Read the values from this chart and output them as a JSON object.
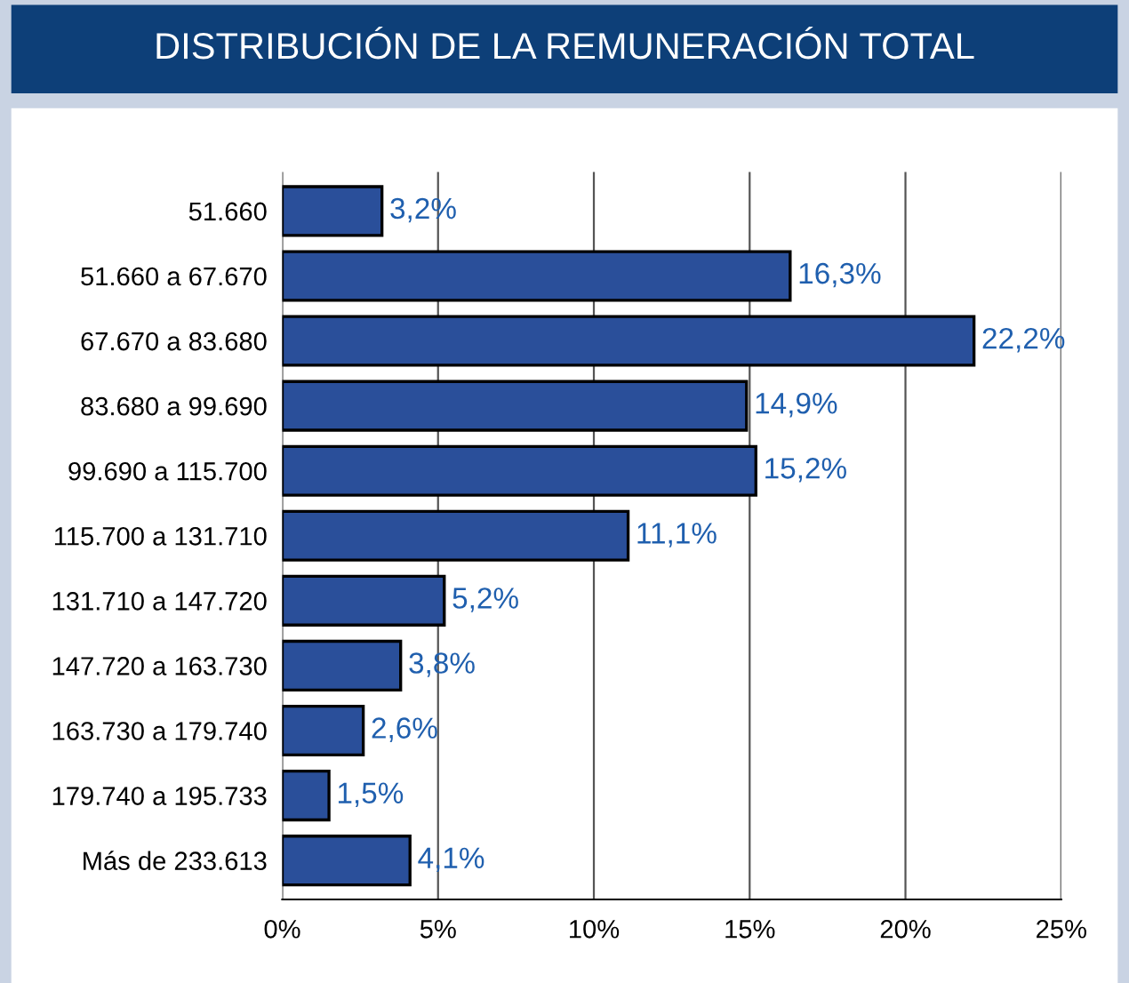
{
  "chart_data": {
    "type": "bar",
    "orientation": "horizontal",
    "title": "DISTRIBUCIÓN DE LA REMUNERACIÓN TOTAL",
    "categories": [
      "51.660",
      "51.660 a 67.670",
      "67.670 a 83.680",
      "83.680 a 99.690",
      "99.690 a 115.700",
      "115.700 a 131.710",
      "131.710 a 147.720",
      "147.720 a 163.730",
      "163.730 a 179.740",
      "179.740 a 195.733",
      "Más de 233.613"
    ],
    "values": [
      3.2,
      16.3,
      22.2,
      14.9,
      15.2,
      11.1,
      5.2,
      3.8,
      2.6,
      1.5,
      4.1
    ],
    "value_labels": [
      "3,2%",
      "16,3%",
      "22,2%",
      "14,9%",
      "15,2%",
      "11,1%",
      "5,2%",
      "3,8%",
      "2,6%",
      "1,5%",
      "4,1%"
    ],
    "color": "#2a4f9a",
    "xlim": [
      0,
      25
    ],
    "xticks": [
      {
        "value": 0,
        "label": "0%"
      },
      {
        "value": 5,
        "label": "5%"
      },
      {
        "value": 10,
        "label": "10%"
      },
      {
        "value": 15,
        "label": "15%"
      },
      {
        "value": 20,
        "label": "20%"
      },
      {
        "value": 25,
        "label": "25%"
      }
    ],
    "grid": "x",
    "legend": false
  }
}
